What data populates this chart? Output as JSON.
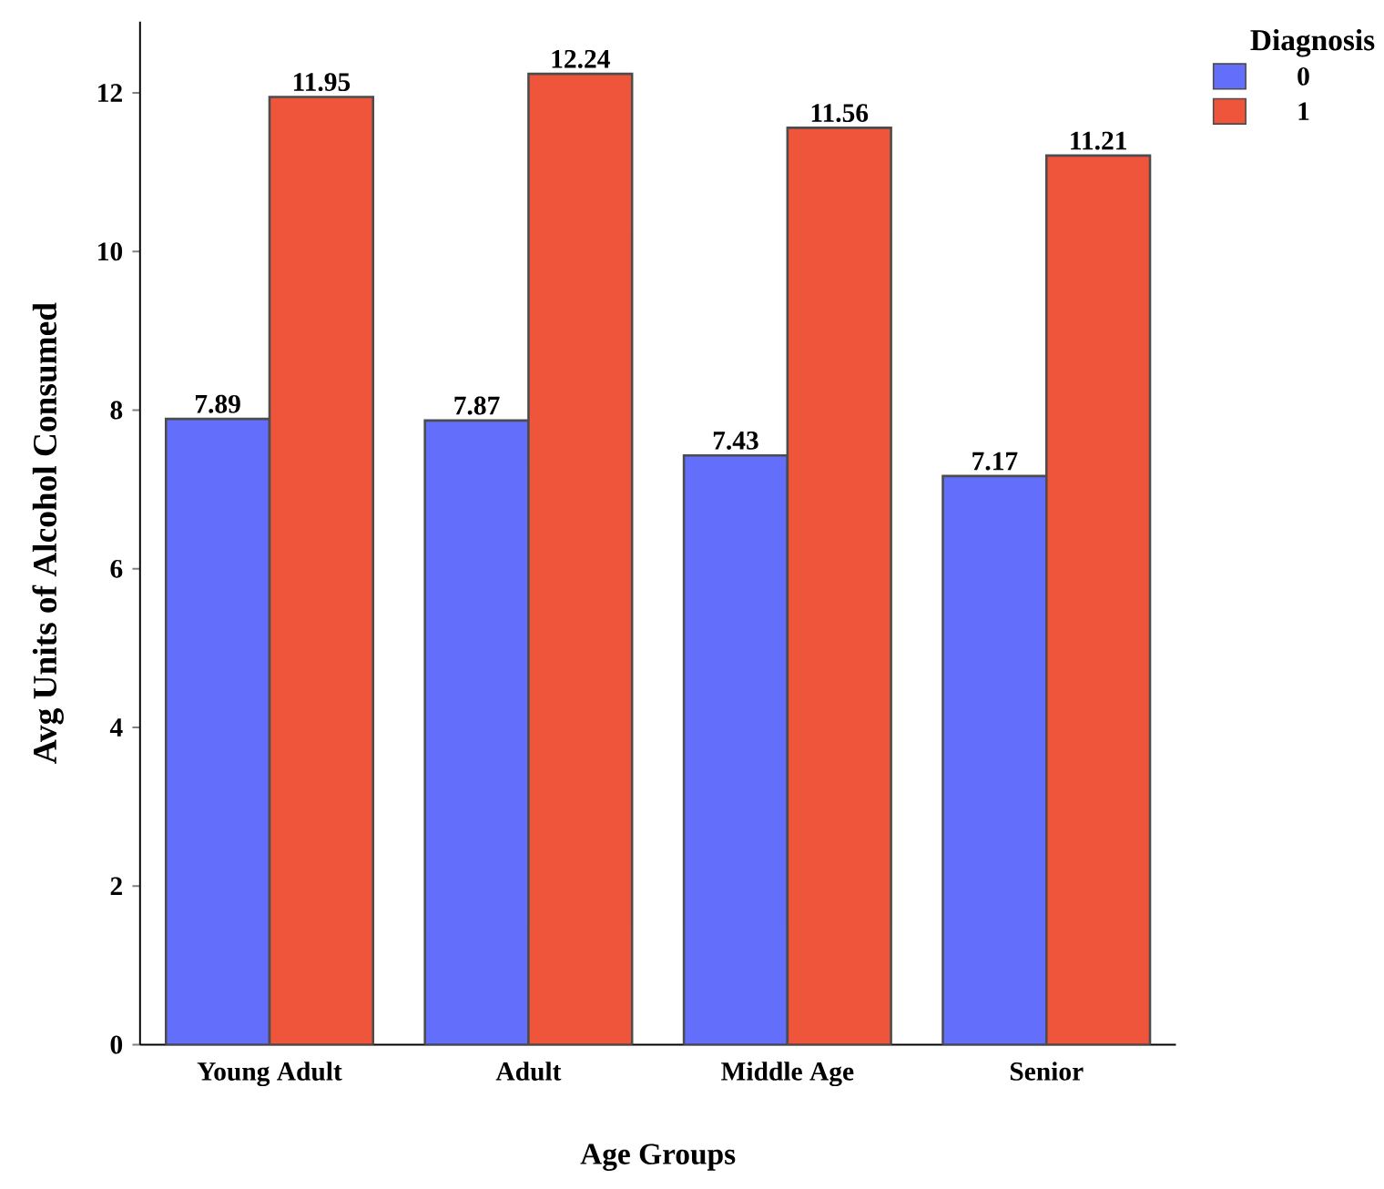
{
  "chart_data": {
    "type": "bar",
    "xlabel": "Age Groups",
    "ylabel": "Avg Units of Alcohol Consumed",
    "legend_title": "Diagnosis",
    "legend": "top right",
    "data_labels": true,
    "categories": [
      "Young Adult",
      "Adult",
      "Middle Age",
      "Senior"
    ],
    "series": [
      {
        "name": "0",
        "color": "#636efa",
        "values": [
          7.89,
          7.87,
          7.43,
          7.17
        ]
      },
      {
        "name": "1",
        "color": "#ef553b",
        "values": [
          11.95,
          12.24,
          11.56,
          11.21
        ]
      }
    ],
    "ylim": [
      0,
      12.9
    ],
    "yticks": [
      0,
      2,
      4,
      6,
      8,
      10,
      12
    ]
  }
}
